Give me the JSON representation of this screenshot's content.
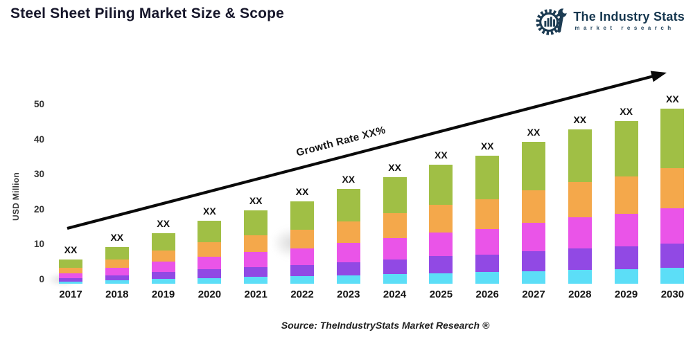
{
  "title": "Steel Sheet Piling Market Size & Scope",
  "logo": {
    "name": "The Industry Stats",
    "tagline": "market research",
    "color": "#1c3b52"
  },
  "growth_label": "Growth Rate XX%",
  "source": "Source: TheIndustryStats Market Research ®",
  "chart_data": {
    "type": "bar",
    "stacked": true,
    "title": "Steel Sheet Piling Market Size & Scope",
    "xlabel": "",
    "ylabel": "USD Million",
    "ylim": [
      0,
      50
    ],
    "y_ticks": [
      0,
      10,
      20,
      30,
      40,
      50
    ],
    "grid": false,
    "legend": "none",
    "categories": [
      "2017",
      "2018",
      "2019",
      "2020",
      "2021",
      "2022",
      "2023",
      "2024",
      "2025",
      "2026",
      "2027",
      "2028",
      "2029",
      "2030"
    ],
    "bar_labels": [
      "XX",
      "XX",
      "XX",
      "XX",
      "XX",
      "XX",
      "XX",
      "XX",
      "XX",
      "XX",
      "XX",
      "XX",
      "XX",
      "XX"
    ],
    "totals": [
      7,
      10.5,
      14.5,
      18,
      21,
      23.5,
      27,
      30.5,
      34,
      36.5,
      40.5,
      44,
      46.5,
      50
    ],
    "series": [
      {
        "name": "cyan-bottom",
        "color": "#5cdef7",
        "values": [
          0.63,
          0.95,
          1.31,
          1.62,
          1.89,
          2.12,
          2.43,
          2.75,
          3.06,
          3.29,
          3.65,
          3.96,
          4.19,
          4.5
        ]
      },
      {
        "name": "purple",
        "color": "#9149e4",
        "values": [
          0.98,
          1.47,
          2.03,
          2.52,
          2.94,
          3.29,
          3.78,
          4.27,
          4.76,
          5.11,
          5.67,
          6.16,
          6.51,
          7.0
        ]
      },
      {
        "name": "magenta",
        "color": "#ea54e8",
        "values": [
          1.4,
          2.1,
          2.9,
          3.6,
          4.2,
          4.7,
          5.4,
          6.1,
          6.8,
          7.3,
          8.1,
          8.8,
          9.3,
          10.0
        ]
      },
      {
        "name": "orange",
        "color": "#f4a84b",
        "values": [
          1.61,
          2.42,
          3.34,
          4.14,
          4.83,
          5.41,
          6.21,
          7.02,
          7.82,
          8.4,
          9.32,
          10.12,
          10.7,
          11.5
        ]
      },
      {
        "name": "green-top",
        "color": "#a0bf45",
        "values": [
          2.38,
          3.57,
          4.93,
          6.12,
          7.14,
          7.99,
          9.18,
          10.37,
          11.56,
          12.41,
          13.77,
          14.96,
          15.81,
          17.0
        ]
      }
    ],
    "annotation": {
      "text": "Growth Rate XX%",
      "type": "trend-arrow"
    }
  }
}
